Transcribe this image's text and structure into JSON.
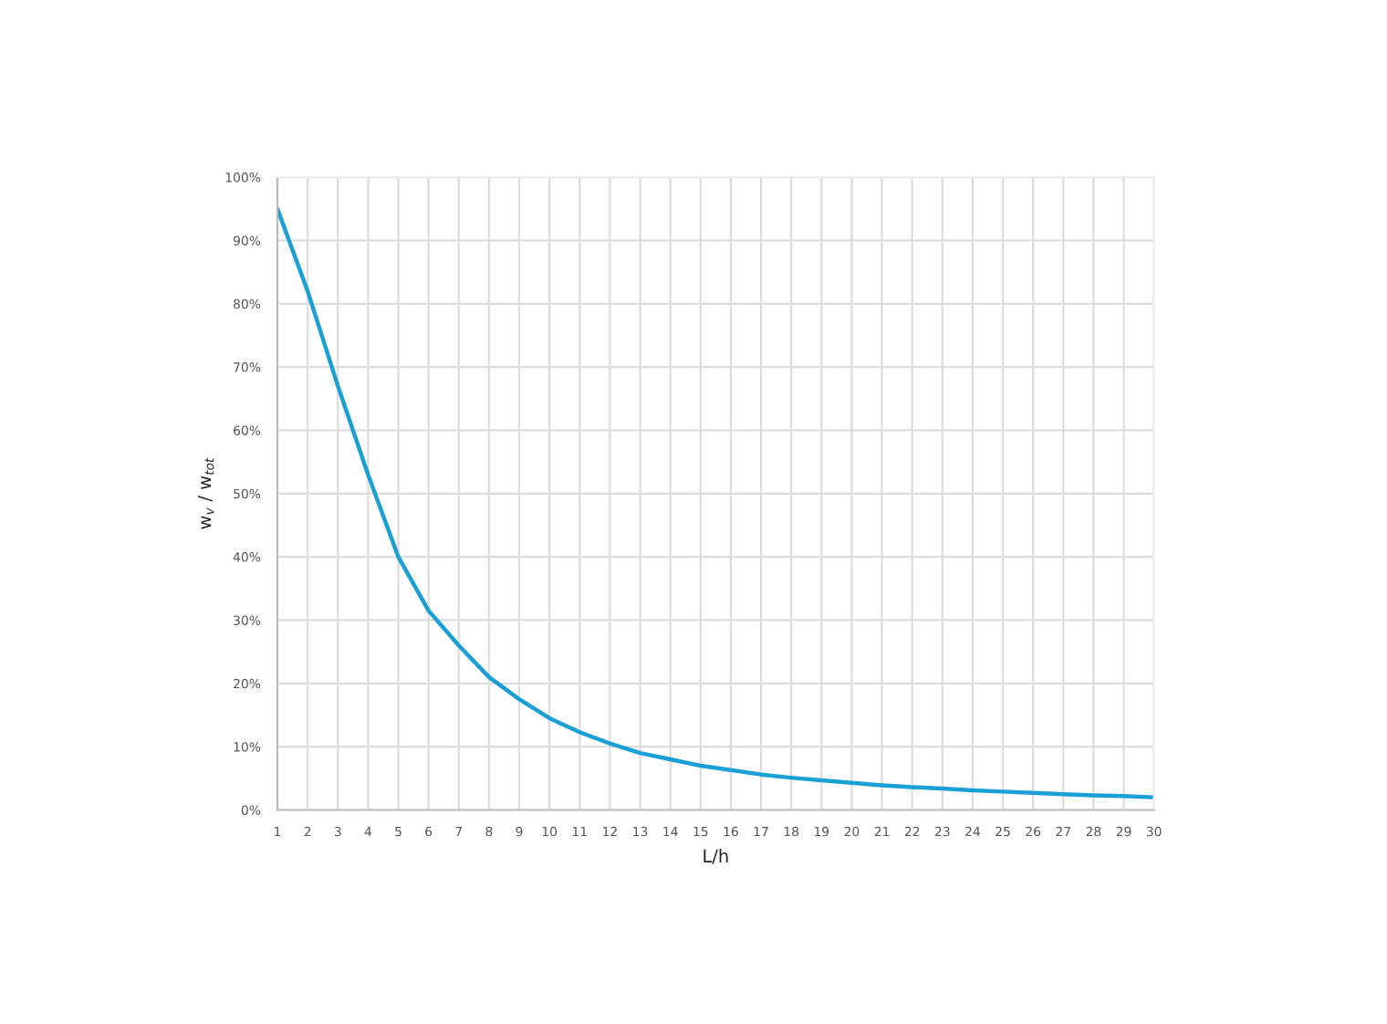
{
  "chart_data": {
    "type": "line",
    "xlabel": "L/h",
    "ylabel": "w$_{v}$ / w$_{tot}$",
    "x": [
      1,
      2,
      3,
      4,
      5,
      6,
      7,
      8,
      9,
      10,
      11,
      12,
      13,
      14,
      15,
      16,
      17,
      18,
      19,
      20,
      21,
      22,
      23,
      24,
      25,
      26,
      27,
      28,
      29,
      30
    ],
    "series": [
      {
        "color": "#1a9fd6",
        "values": [
          95,
          82,
          67,
          53,
          40,
          31.5,
          26,
          21,
          17.5,
          14.5,
          12.3,
          10.5,
          9,
          8,
          7,
          6.3,
          5.6,
          5.1,
          4.7,
          4.3,
          3.9,
          3.6,
          3.4,
          3.1,
          2.9,
          2.7,
          2.5,
          2.3,
          2.2,
          2.0
        ]
      }
    ],
    "xlim": [
      1,
      30
    ],
    "xticks": [
      1,
      2,
      3,
      4,
      5,
      6,
      7,
      8,
      9,
      10,
      11,
      12,
      13,
      14,
      15,
      16,
      17,
      18,
      19,
      20,
      21,
      22,
      23,
      24,
      25,
      26,
      27,
      28,
      29,
      30
    ],
    "ylim": [
      0,
      100
    ],
    "yticks": [
      {
        "value": 0,
        "label": "0%"
      },
      {
        "value": 10,
        "label": "10%"
      },
      {
        "value": 20,
        "label": "20%"
      },
      {
        "value": 30,
        "label": "30%"
      },
      {
        "value": 40,
        "label": "40%"
      },
      {
        "value": 50,
        "label": "50%"
      },
      {
        "value": 60,
        "label": "60%"
      },
      {
        "value": 70,
        "label": "70%"
      },
      {
        "value": 80,
        "label": "80%"
      },
      {
        "value": 90,
        "label": "90%"
      },
      {
        "value": 100,
        "label": "100%"
      }
    ],
    "grid": true,
    "line_style": "solid",
    "marker": "none"
  }
}
